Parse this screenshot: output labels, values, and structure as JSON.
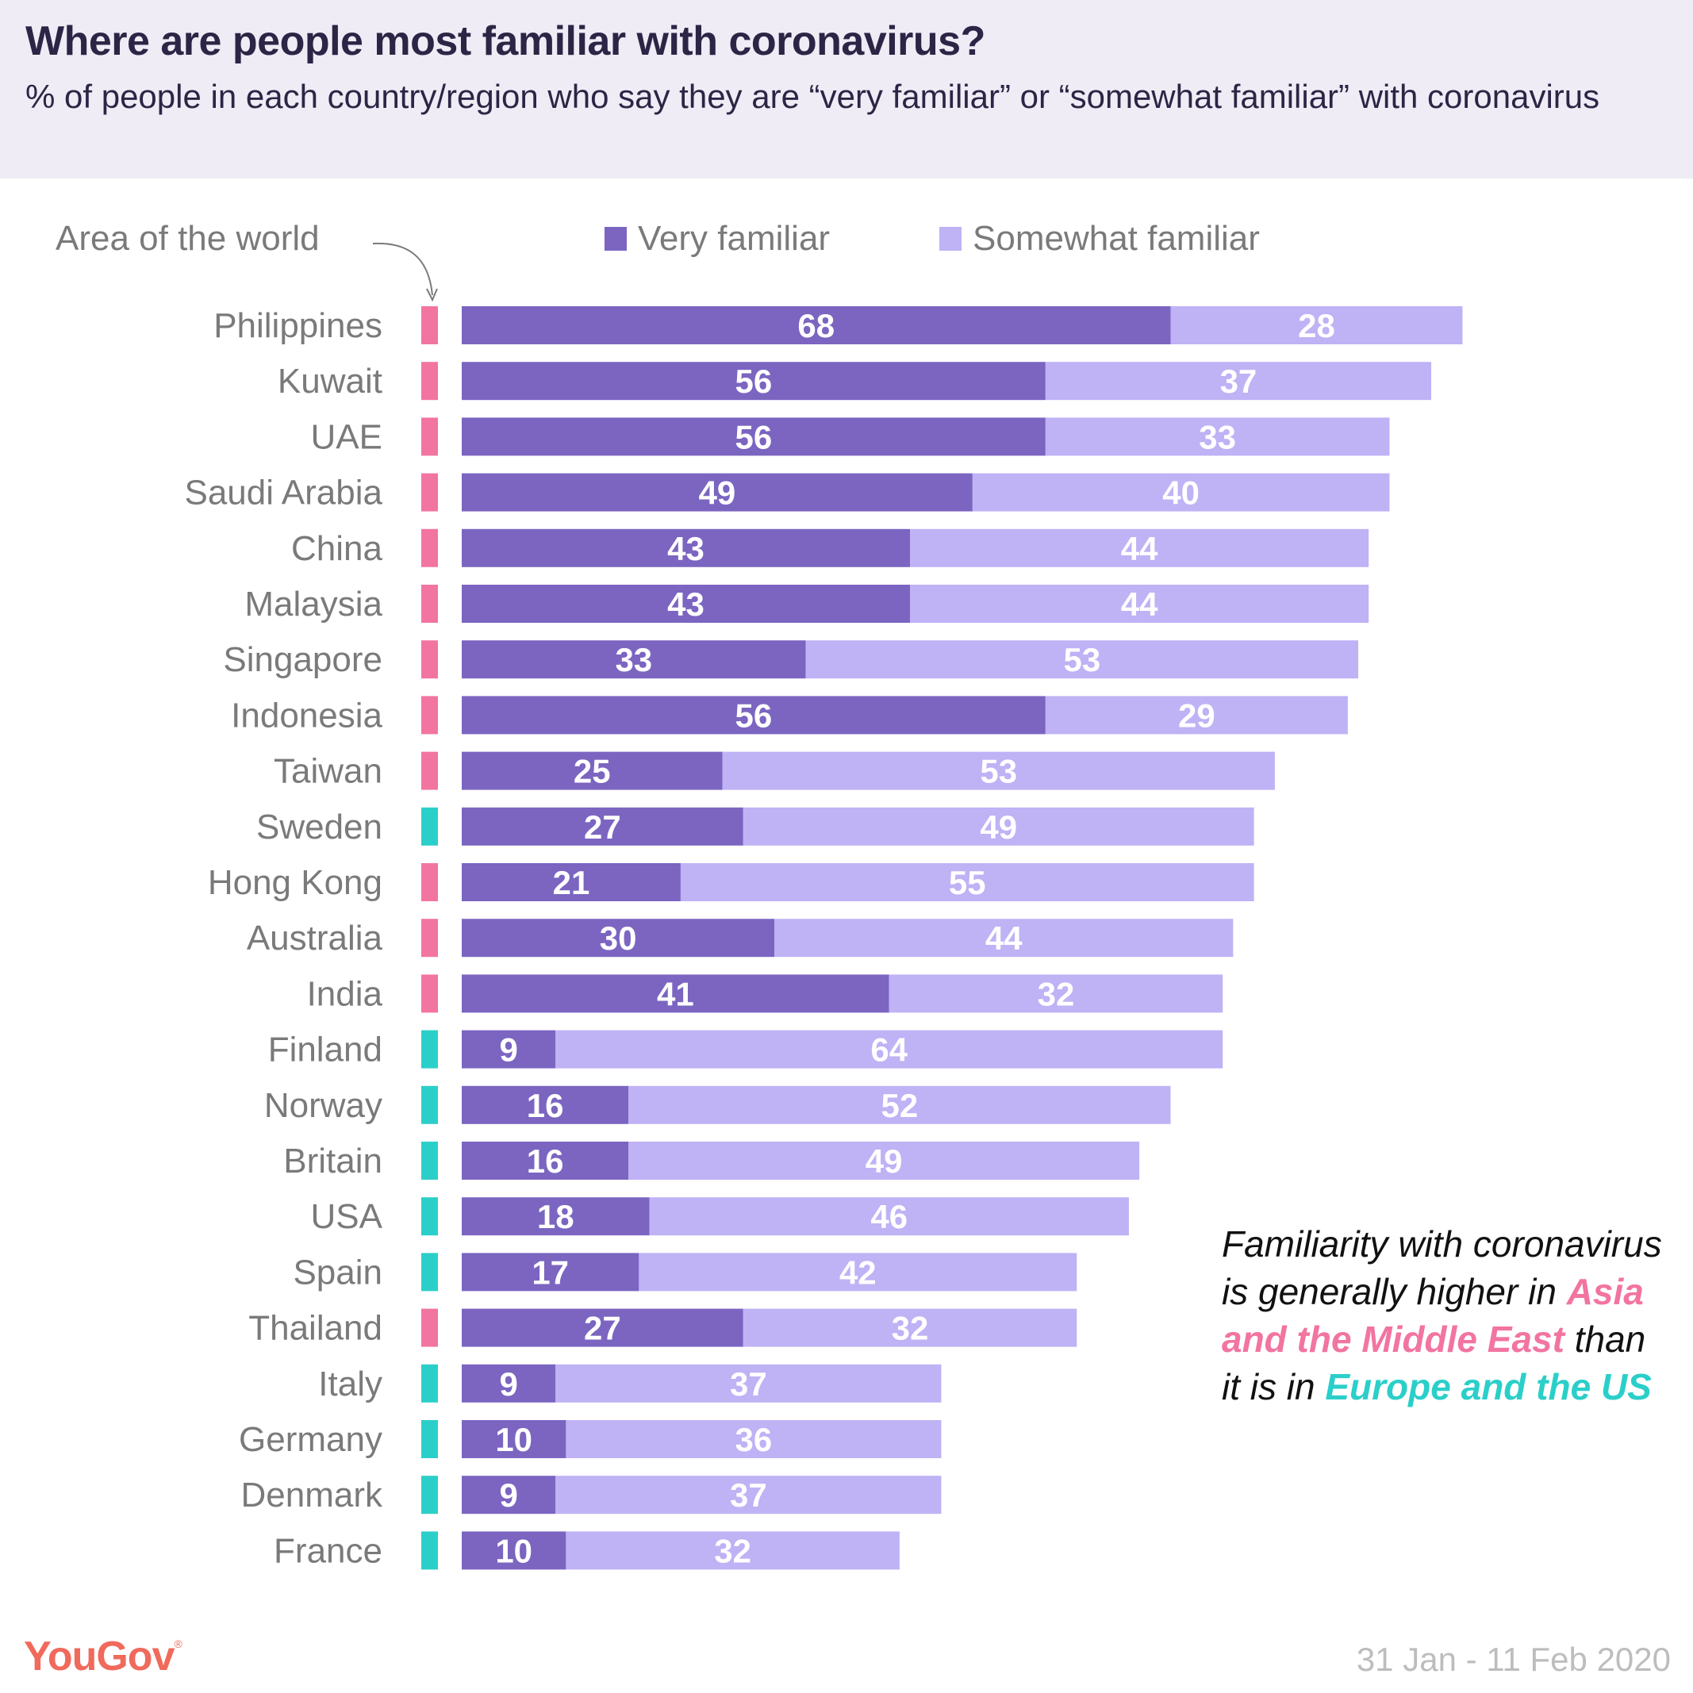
{
  "header": {
    "title": "Where are people most familiar with coronavirus?",
    "subtitle": "% of people in each country/region who say they are “very familiar” or “somewhat familiar” with coronavirus"
  },
  "area_label": "Area of the world",
  "colors": {
    "very": "#7b65c1",
    "somewhat": "#bfb2f5",
    "asia_me": "#f274a1",
    "europe_us": "#2bcfc9",
    "header_bg": "#efecf6"
  },
  "annotation": {
    "part1": "Familiarity with coronavirus is generally higher in ",
    "highlight1": "Asia and the Middle East",
    "part2": " than it is in ",
    "highlight2": "Europe and the US"
  },
  "footer": {
    "logo": "YouGov",
    "date_range": "31 Jan - 11 Feb 2020"
  },
  "chart_data": {
    "type": "bar",
    "orientation": "horizontal",
    "stacked": true,
    "title": "Where are people most familiar with coronavirus?",
    "subtitle": "% of people in each country/region who say they are “very familiar” or “somewhat familiar” with coronavirus",
    "xlabel": "",
    "ylabel": "",
    "legend": {
      "placement": "top",
      "entries": [
        "Very familiar",
        "Somewhat familiar"
      ]
    },
    "region_legend": {
      "asia_me": "Asia and the Middle East",
      "europe_us": "Europe and the US"
    },
    "categories": [
      "Philippines",
      "Kuwait",
      "UAE",
      "Saudi Arabia",
      "China",
      "Malaysia",
      "Singapore",
      "Indonesia",
      "Taiwan",
      "Sweden",
      "Hong Kong",
      "Australia",
      "India",
      "Finland",
      "Norway",
      "Britain",
      "USA",
      "Spain",
      "Thailand",
      "Italy",
      "Germany",
      "Denmark",
      "France"
    ],
    "regions": [
      "asia_me",
      "asia_me",
      "asia_me",
      "asia_me",
      "asia_me",
      "asia_me",
      "asia_me",
      "asia_me",
      "asia_me",
      "europe_us",
      "asia_me",
      "asia_me",
      "asia_me",
      "europe_us",
      "europe_us",
      "europe_us",
      "europe_us",
      "europe_us",
      "asia_me",
      "europe_us",
      "europe_us",
      "europe_us",
      "europe_us"
    ],
    "series": [
      {
        "name": "Very familiar",
        "values": [
          68,
          56,
          56,
          49,
          43,
          43,
          33,
          56,
          25,
          27,
          21,
          30,
          41,
          9,
          16,
          16,
          18,
          17,
          27,
          9,
          10,
          9,
          10
        ]
      },
      {
        "name": "Somewhat familiar",
        "values": [
          28,
          37,
          33,
          40,
          44,
          44,
          53,
          29,
          53,
          49,
          55,
          44,
          32,
          64,
          52,
          49,
          46,
          42,
          32,
          37,
          36,
          37,
          32
        ]
      }
    ],
    "xlim": [
      0,
      100
    ],
    "grid": false
  }
}
